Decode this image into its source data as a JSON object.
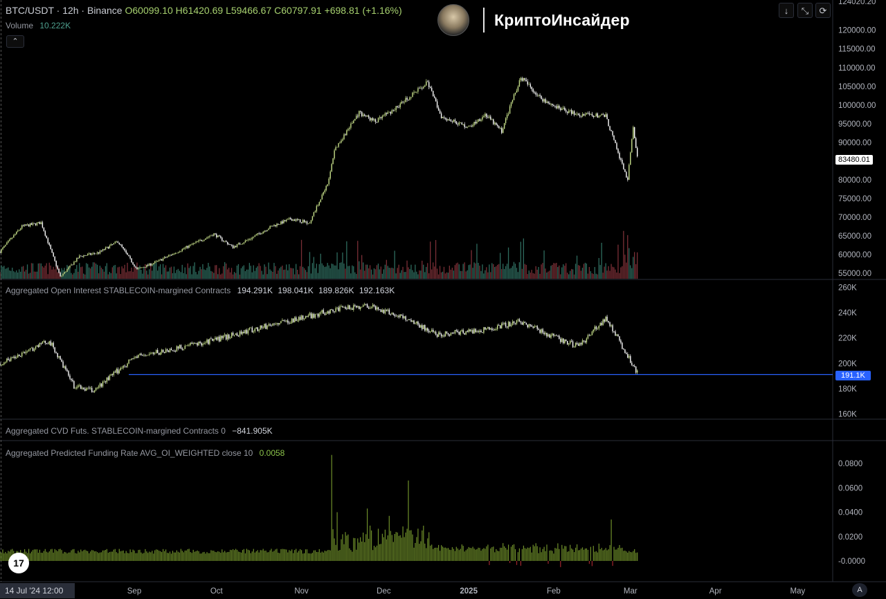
{
  "header": {
    "symbol_line": "BTC/USDT · 12h · Binance",
    "open": "O60099.10",
    "high": "H61420.69",
    "low": "L59466.67",
    "close": "C60797.91",
    "change": "+698.81 (+1.16%)",
    "volume_label": "Volume",
    "volume_value": "10.222K",
    "collapse_icon": "chevron-up-icon"
  },
  "brand": {
    "name": "КриптоИнсайдер",
    "avatar_icon": "avatar-icon"
  },
  "controls": [
    {
      "name": "arrow-down-icon",
      "glyph": "↓"
    },
    {
      "name": "maximize-icon",
      "glyph": "⤡"
    },
    {
      "name": "refresh-icon",
      "glyph": "⟳"
    }
  ],
  "colors": {
    "up": "#c7e08a",
    "down": "#ffffff",
    "volume_up": "#2e6b5e",
    "volume_down": "#7a2f36",
    "oi_line": "#2962ff",
    "funding_up": "#6f8f2a",
    "funding_down": "#a0262e"
  },
  "price_tag": "83480.01",
  "oi_tag": "191.1K",
  "panes": {
    "oi_legend": "Aggregated Open Interest STABLECOIN-margined Contracts",
    "oi_values": [
      "194.291K",
      "198.041K",
      "189.826K",
      "192.163K"
    ],
    "cvd_legend": "Aggregated CVD Futs. STABLECOIN-margined Contracts 0",
    "cvd_value": "−841.905K",
    "funding_legend": "Aggregated Predicted Funding Rate AVG_OI_WEIGHTED close 10",
    "funding_value": "0.0058"
  },
  "bottom_left_date": "14 Jul '24   12:00",
  "tv_logo": "tradingview-logo-icon",
  "auto_scale": "A",
  "chart_data": [
    {
      "type": "candlestick",
      "title": "BTC/USDT · 12h · Binance",
      "y_ticks": [
        "124020.20",
        "120000.00",
        "115000.00",
        "110000.00",
        "105000.00",
        "100000.00",
        "95000.00",
        "90000.00",
        "85000.00",
        "80000.00",
        "75000.00",
        "70000.00",
        "65000.00",
        "60000.00",
        "55000.00"
      ],
      "x_ticks": [
        "Sep",
        "Oct",
        "Nov",
        "Dec",
        "2025",
        "Feb",
        "Mar",
        "Apr",
        "May"
      ],
      "ylim": [
        55000,
        124020.2
      ],
      "close_path": [
        [
          "2024-07-14",
          60800
        ],
        [
          "2024-07-22",
          67500
        ],
        [
          "2024-07-29",
          68500
        ],
        [
          "2024-08-05",
          54000
        ],
        [
          "2024-08-12",
          59500
        ],
        [
          "2024-08-19",
          60500
        ],
        [
          "2024-08-26",
          63500
        ],
        [
          "2024-09-02",
          56000
        ],
        [
          "2024-09-09",
          58000
        ],
        [
          "2024-09-16",
          60500
        ],
        [
          "2024-09-23",
          63000
        ],
        [
          "2024-09-30",
          65500
        ],
        [
          "2024-10-07",
          62000
        ],
        [
          "2024-10-14",
          64500
        ],
        [
          "2024-10-21",
          67500
        ],
        [
          "2024-10-28",
          69500
        ],
        [
          "2024-11-04",
          68500
        ],
        [
          "2024-11-11",
          80000
        ],
        [
          "2024-11-13",
          88000
        ],
        [
          "2024-11-22",
          98000
        ],
        [
          "2024-11-28",
          95500
        ],
        [
          "2024-12-05",
          99000
        ],
        [
          "2024-12-17",
          106000
        ],
        [
          "2024-12-22",
          97000
        ],
        [
          "2025-01-01",
          94000
        ],
        [
          "2025-01-07",
          97500
        ],
        [
          "2025-01-13",
          93000
        ],
        [
          "2025-01-20",
          107500
        ],
        [
          "2025-01-27",
          102000
        ],
        [
          "2025-02-03",
          99000
        ],
        [
          "2025-02-10",
          97500
        ],
        [
          "2025-02-20",
          97000
        ],
        [
          "2025-02-25",
          86000
        ],
        [
          "2025-02-28",
          80000
        ],
        [
          "2025-03-02",
          94000
        ],
        [
          "2025-03-04",
          83480
        ]
      ]
    },
    {
      "type": "line",
      "title": "Aggregated Open Interest STABLECOIN-margined Contracts",
      "y_ticks": [
        "260K",
        "240K",
        "220K",
        "200K",
        "180K",
        "160K"
      ],
      "ylim": [
        158000,
        262000
      ],
      "points": [
        [
          "2024-07-14",
          200000
        ],
        [
          "2024-08-01",
          218000
        ],
        [
          "2024-08-10",
          182000
        ],
        [
          "2024-08-17",
          178000
        ],
        [
          "2024-09-01",
          205000
        ],
        [
          "2024-09-15",
          211000
        ],
        [
          "2024-10-01",
          219000
        ],
        [
          "2024-10-20",
          230000
        ],
        [
          "2024-11-05",
          238000
        ],
        [
          "2024-11-12",
          242000
        ],
        [
          "2024-11-25",
          246000
        ],
        [
          "2024-12-10",
          235000
        ],
        [
          "2024-12-20",
          223000
        ],
        [
          "2025-01-05",
          226000
        ],
        [
          "2025-01-20",
          233000
        ],
        [
          "2025-02-01",
          221000
        ],
        [
          "2025-02-10",
          213000
        ],
        [
          "2025-02-20",
          236000
        ],
        [
          "2025-03-04",
          191100
        ]
      ]
    },
    {
      "type": "bar",
      "title": "Aggregated Predicted Funding Rate AVG_OI_WEIGHTED close 10",
      "y_ticks": [
        "0.0800",
        "0.0600",
        "0.0400",
        "0.0200",
        "-0.0000"
      ],
      "ylim": [
        -0.008,
        0.09
      ],
      "peaks": [
        [
          "2024-11-12",
          0.087
        ],
        [
          "2024-11-14",
          0.04
        ],
        [
          "2024-11-25",
          0.043
        ],
        [
          "2024-12-03",
          0.037
        ],
        [
          "2024-12-10",
          0.066
        ],
        [
          "2024-12-15",
          0.025
        ],
        [
          "2025-02-22",
          0.034
        ]
      ]
    }
  ]
}
